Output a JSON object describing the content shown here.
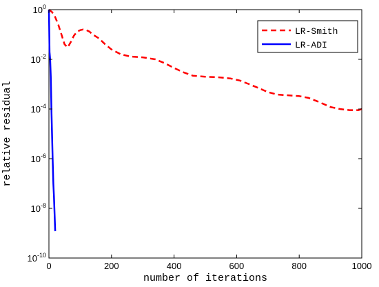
{
  "chart_data": {
    "type": "line",
    "xlabel": "number of iterations",
    "ylabel": "relative residual",
    "xlim": [
      0,
      1000
    ],
    "ylim": [
      1e-10,
      1
    ],
    "yscale": "log",
    "grid": false,
    "legend_position": "top-right",
    "xticks": [
      0,
      200,
      400,
      600,
      800,
      1000
    ],
    "yticks": [
      {
        "base": "10",
        "exp": "0",
        "value": 1
      },
      {
        "base": "10",
        "exp": "-2",
        "value": 0.01
      },
      {
        "base": "10",
        "exp": "-4",
        "value": 0.0001
      },
      {
        "base": "10",
        "exp": "-6",
        "value": 1e-06
      },
      {
        "base": "10",
        "exp": "-8",
        "value": 1e-08
      },
      {
        "base": "10",
        "exp": "-10",
        "value": 1e-10
      }
    ],
    "series": [
      {
        "name": "LR-Smith",
        "color": "#ff0000",
        "style": "dashed",
        "x": [
          0,
          10,
          20,
          30,
          40,
          50,
          60,
          70,
          80,
          90,
          100,
          110,
          120,
          130,
          140,
          160,
          180,
          200,
          230,
          260,
          300,
          340,
          370,
          400,
          430,
          460,
          500,
          540,
          580,
          610,
          640,
          670,
          700,
          730,
          760,
          800,
          830,
          860,
          900,
          930,
          960,
          990,
          1000
        ],
        "y": [
          1.0,
          0.8,
          0.5,
          0.25,
          0.1,
          0.04,
          0.03,
          0.05,
          0.09,
          0.13,
          0.15,
          0.16,
          0.15,
          0.13,
          0.1,
          0.07,
          0.04,
          0.025,
          0.016,
          0.013,
          0.012,
          0.01,
          0.007,
          0.0045,
          0.003,
          0.0022,
          0.002,
          0.0019,
          0.0017,
          0.0014,
          0.001,
          0.0007,
          0.00048,
          0.00038,
          0.00036,
          0.00033,
          0.00028,
          0.0002,
          0.00012,
          0.0001,
          9e-05,
          9e-05,
          0.0001
        ]
      },
      {
        "name": "LR-ADI",
        "color": "#0000ff",
        "style": "solid",
        "x": [
          0,
          2,
          4,
          6,
          8,
          10,
          12,
          14,
          16,
          18,
          20
        ],
        "y": [
          1.0,
          0.02,
          0.01,
          0.002,
          0.0001,
          1e-05,
          1e-06,
          1e-07,
          3e-08,
          6e-09,
          1.2e-09
        ]
      }
    ]
  }
}
